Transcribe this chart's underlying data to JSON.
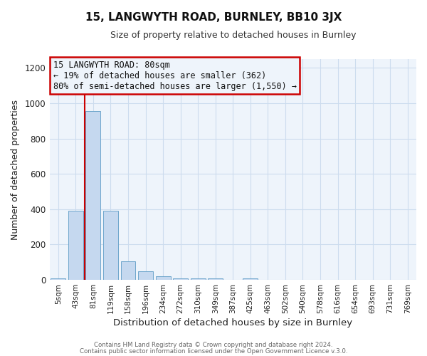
{
  "title": "15, LANGWYTH ROAD, BURNLEY, BB10 3JX",
  "subtitle": "Size of property relative to detached houses in Burnley",
  "xlabel": "Distribution of detached houses by size in Burnley",
  "ylabel": "Number of detached properties",
  "bar_labels": [
    "5sqm",
    "43sqm",
    "81sqm",
    "119sqm",
    "158sqm",
    "196sqm",
    "234sqm",
    "272sqm",
    "310sqm",
    "349sqm",
    "387sqm",
    "425sqm",
    "463sqm",
    "502sqm",
    "540sqm",
    "578sqm",
    "616sqm",
    "654sqm",
    "693sqm",
    "731sqm",
    "769sqm"
  ],
  "bar_values": [
    10,
    390,
    955,
    390,
    105,
    50,
    22,
    10,
    8,
    10,
    0,
    8,
    0,
    0,
    0,
    0,
    0,
    0,
    0,
    0,
    0
  ],
  "bar_color": "#c5d8ef",
  "bar_edge_color": "#6ea6cc",
  "grid_color": "#ccdcee",
  "background_color": "#ffffff",
  "plot_bg_color": "#eef4fb",
  "ylim": [
    0,
    1250
  ],
  "yticks": [
    0,
    200,
    400,
    600,
    800,
    1000,
    1200
  ],
  "property_line_color": "#cc0000",
  "annotation_title": "15 LANGWYTH ROAD: 80sqm",
  "annotation_line1": "← 19% of detached houses are smaller (362)",
  "annotation_line2": "80% of semi-detached houses are larger (1,550) →",
  "annotation_box_color": "#cc0000",
  "footer_line1": "Contains HM Land Registry data © Crown copyright and database right 2024.",
  "footer_line2": "Contains public sector information licensed under the Open Government Licence v.3.0."
}
